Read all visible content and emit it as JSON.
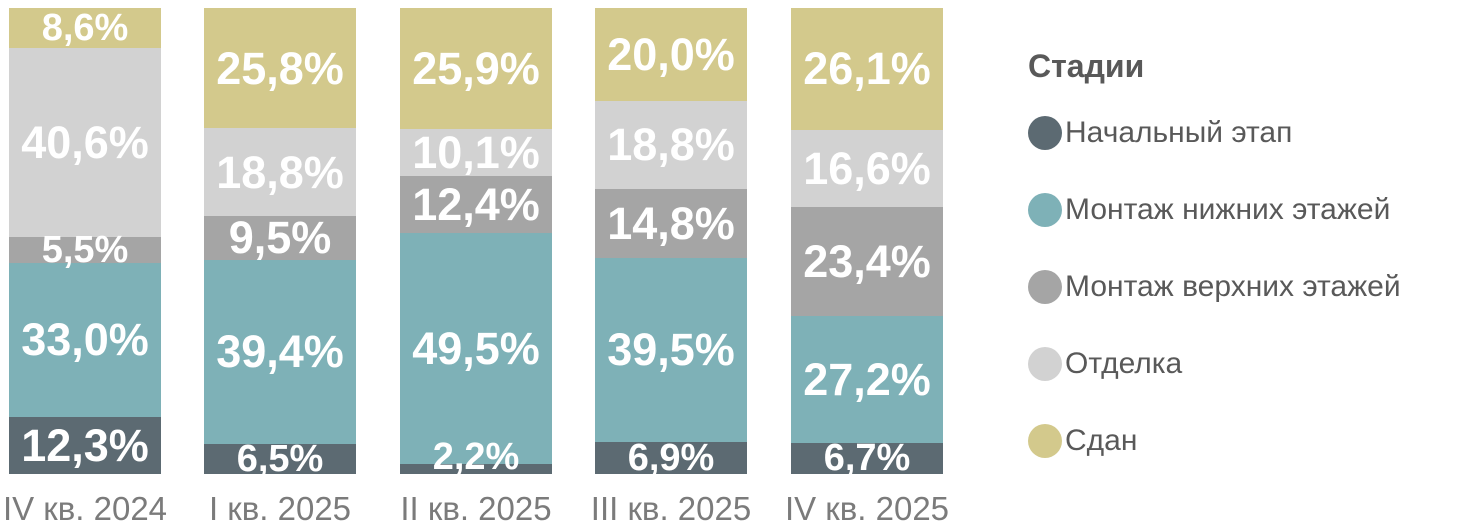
{
  "chart_data": {
    "type": "bar",
    "variant": "stacked-100-percent",
    "title": "",
    "xlabel": "",
    "ylabel": "",
    "ylim": [
      0,
      100
    ],
    "grid": false,
    "value_suffix": "%",
    "decimal_separator": ",",
    "categories": [
      "IV кв. 2024",
      "I кв. 2025",
      "II кв. 2025",
      "III кв. 2025",
      "IV кв. 2025"
    ],
    "series": [
      {
        "name": "Начальный этап",
        "color": "#5c6a72",
        "values": [
          12.3,
          6.5,
          2.2,
          6.9,
          6.7
        ],
        "labels": [
          "12,3%",
          "6,5%",
          "2,2%",
          "6,9%",
          "6,7%"
        ]
      },
      {
        "name": "Монтаж нижних этажей",
        "color": "#7eb1b7",
        "values": [
          33.0,
          39.4,
          49.5,
          39.5,
          27.2
        ],
        "labels": [
          "33,0%",
          "39,4%",
          "49,5%",
          "39,5%",
          "27,2%"
        ]
      },
      {
        "name": "Монтаж верхних этажей",
        "color": "#a5a5a5",
        "values": [
          5.5,
          9.5,
          12.4,
          14.8,
          23.4
        ],
        "labels": [
          "5,5%",
          "9,5%",
          "12,4%",
          "14,8%",
          "23,4%"
        ]
      },
      {
        "name": "Отделка",
        "color": "#d2d2d2",
        "values": [
          40.6,
          18.8,
          10.1,
          18.8,
          16.6
        ],
        "labels": [
          "40,6%",
          "18,8%",
          "10,1%",
          "18,8%",
          "16,6%"
        ]
      },
      {
        "name": "Сдан",
        "color": "#d3c98c",
        "values": [
          8.6,
          25.8,
          25.9,
          20.0,
          26.1
        ],
        "labels": [
          "8,6%",
          "25,8%",
          "25,9%",
          "20,0%",
          "26,1%"
        ]
      }
    ],
    "legend": {
      "title": "Стадии",
      "position": "right"
    },
    "bar_label_color": "#ffffff",
    "axis_label_color": "#7b7b7b",
    "legend_text_color": "#595959"
  }
}
